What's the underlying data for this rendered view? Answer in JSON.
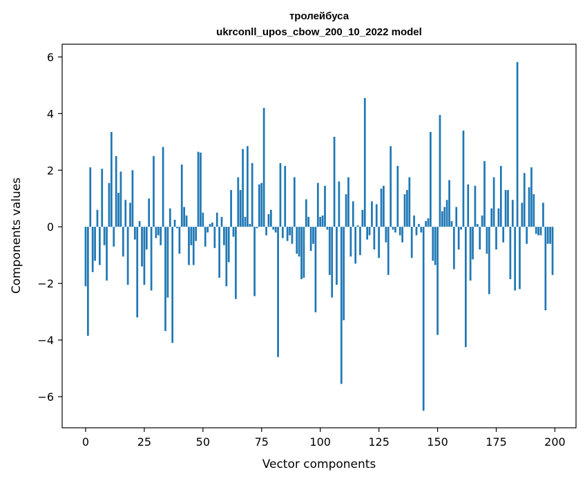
{
  "chart_data": {
    "type": "bar",
    "title_lines": [
      "тролейбуса",
      "ukrconll_upos_cbow_200_10_2022 model"
    ],
    "xlabel": "Vector components",
    "ylabel": "Components values",
    "xlim": [
      -10,
      209
    ],
    "ylim": [
      -7.1,
      6.45
    ],
    "xticks": [
      0,
      25,
      50,
      75,
      100,
      125,
      150,
      175,
      200
    ],
    "yticks": [
      -6,
      -4,
      -2,
      0,
      2,
      4,
      6
    ],
    "ytick_labels": [
      "−6",
      "−4",
      "−2",
      "0",
      "2",
      "4",
      "6"
    ],
    "grid": false,
    "bar_color": "#1f77b4",
    "x": [
      0,
      1,
      2,
      3,
      4,
      5,
      6,
      7,
      8,
      9,
      10,
      11,
      12,
      13,
      14,
      15,
      16,
      17,
      18,
      19,
      20,
      21,
      22,
      23,
      24,
      25,
      26,
      27,
      28,
      29,
      30,
      31,
      32,
      33,
      34,
      35,
      36,
      37,
      38,
      39,
      40,
      41,
      42,
      43,
      44,
      45,
      46,
      47,
      48,
      49,
      50,
      51,
      52,
      53,
      54,
      55,
      56,
      57,
      58,
      59,
      60,
      61,
      62,
      63,
      64,
      65,
      66,
      67,
      68,
      69,
      70,
      71,
      72,
      73,
      74,
      75,
      76,
      77,
      78,
      79,
      80,
      81,
      82,
      83,
      84,
      85,
      86,
      87,
      88,
      89,
      90,
      91,
      92,
      93,
      94,
      95,
      96,
      97,
      98,
      99,
      100,
      101,
      102,
      103,
      104,
      105,
      106,
      107,
      108,
      109,
      110,
      111,
      112,
      113,
      114,
      115,
      116,
      117,
      118,
      119,
      120,
      121,
      122,
      123,
      124,
      125,
      126,
      127,
      128,
      129,
      130,
      131,
      132,
      133,
      134,
      135,
      136,
      137,
      138,
      139,
      140,
      141,
      142,
      143,
      144,
      145,
      146,
      147,
      148,
      149,
      150,
      151,
      152,
      153,
      154,
      155,
      156,
      157,
      158,
      159,
      160,
      161,
      162,
      163,
      164,
      165,
      166,
      167,
      168,
      169,
      170,
      171,
      172,
      173,
      174,
      175,
      176,
      177,
      178,
      179,
      180,
      181,
      182,
      183,
      184,
      185,
      186,
      187,
      188,
      189,
      190,
      191,
      192,
      193,
      194,
      195,
      196,
      197,
      198,
      199
    ],
    "values": [
      -2.1,
      -3.85,
      2.1,
      -1.6,
      -1.2,
      0.6,
      -1.35,
      2.05,
      -0.65,
      -1.9,
      1.55,
      3.35,
      -0.7,
      2.5,
      1.2,
      1.95,
      -1.05,
      0.95,
      -2.05,
      0.85,
      2.0,
      -0.45,
      -3.2,
      0.2,
      -1.4,
      -2.05,
      -0.8,
      1.0,
      -2.25,
      2.5,
      -0.4,
      -0.3,
      -0.65,
      2.82,
      -3.68,
      -2.5,
      0.65,
      -4.1,
      0.25,
      -0.05,
      -0.95,
      2.2,
      0.7,
      0.4,
      -1.35,
      -0.65,
      -1.35,
      -0.5,
      2.65,
      2.62,
      0.5,
      -0.7,
      -0.2,
      0.1,
      0.15,
      -0.75,
      0.5,
      -1.8,
      0.35,
      -0.65,
      -2.1,
      -1.25,
      1.3,
      -0.35,
      -2.55,
      1.75,
      1.3,
      2.75,
      0.35,
      2.85,
      0.1,
      2.25,
      -2.45,
      -0.05,
      1.5,
      1.55,
      4.2,
      -0.3,
      0.45,
      0.6,
      -0.1,
      -0.2,
      -4.6,
      2.25,
      -0.4,
      2.15,
      -0.5,
      -0.3,
      -0.6,
      1.75,
      -0.95,
      -1.05,
      -1.85,
      -1.8,
      0.97,
      0.35,
      -0.85,
      -0.6,
      -3.02,
      1.55,
      0.35,
      0.4,
      1.45,
      -0.1,
      -1.7,
      -2.5,
      3.18,
      -2.05,
      1.6,
      -5.55,
      -3.3,
      1.15,
      1.75,
      -1.05,
      0.9,
      -1.3,
      0.05,
      -1.0,
      0.6,
      4.55,
      -0.45,
      -0.3,
      0.9,
      -0.8,
      0.8,
      -1.1,
      1.35,
      1.45,
      -0.55,
      -1.7,
      2.85,
      -0.1,
      -0.2,
      2.15,
      -0.3,
      -0.55,
      1.15,
      1.3,
      1.75,
      -1.1,
      0.4,
      -0.3,
      0.1,
      -0.2,
      -6.5,
      0.2,
      0.3,
      3.35,
      -1.2,
      -1.35,
      -3.82,
      3.95,
      0.55,
      0.7,
      0.95,
      1.65,
      0.2,
      -1.5,
      0.7,
      -0.8,
      -0.1,
      3.4,
      -4.25,
      1.5,
      -1.9,
      -1.15,
      1.45,
      0.1,
      -0.8,
      0.4,
      2.32,
      -0.95,
      -2.38,
      0.65,
      1.75,
      -0.8,
      0.65,
      2.15,
      -0.55,
      1.3,
      1.3,
      -1.85,
      0.95,
      -2.25,
      5.82,
      -2.2,
      0.85,
      1.9,
      -0.6,
      1.4,
      2.1,
      1.15,
      -0.25,
      -0.3,
      -0.3,
      0.85,
      -2.95,
      -0.6,
      -0.6,
      -1.7
    ]
  }
}
